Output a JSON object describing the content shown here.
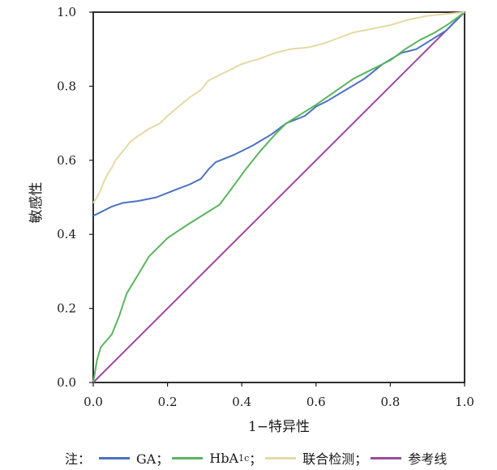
{
  "chart_data": {
    "type": "line",
    "xlabel": "1−特异性",
    "ylabel": "敏感性",
    "xlim": [
      0,
      1
    ],
    "ylim": [
      0,
      1
    ],
    "xticks": [
      "0.0",
      "0.2",
      "0.4",
      "0.6",
      "0.8",
      "1.0"
    ],
    "yticks": [
      "0.0",
      "0.2",
      "0.4",
      "0.6",
      "0.8",
      "1.0"
    ],
    "grid": false,
    "legend_position": "bottom",
    "series": [
      {
        "name": "GA",
        "color": "#4a72c0",
        "x": [
          0,
          0.02,
          0.05,
          0.08,
          0.12,
          0.17,
          0.22,
          0.26,
          0.29,
          0.31,
          0.33,
          0.38,
          0.43,
          0.48,
          0.52,
          0.57,
          0.6,
          0.63,
          0.68,
          0.73,
          0.78,
          0.83,
          0.87,
          0.91,
          0.95,
          0.98,
          1.0
        ],
        "y": [
          0.45,
          0.46,
          0.475,
          0.485,
          0.49,
          0.5,
          0.52,
          0.535,
          0.55,
          0.575,
          0.595,
          0.615,
          0.64,
          0.67,
          0.7,
          0.72,
          0.745,
          0.76,
          0.79,
          0.82,
          0.86,
          0.89,
          0.9,
          0.925,
          0.95,
          0.98,
          1.0
        ]
      },
      {
        "name": "HbA1c",
        "color": "#5ab55e",
        "x": [
          0,
          0.01,
          0.02,
          0.05,
          0.07,
          0.09,
          0.12,
          0.15,
          0.18,
          0.2,
          0.23,
          0.26,
          0.3,
          0.34,
          0.37,
          0.41,
          0.45,
          0.49,
          0.52,
          0.56,
          0.6,
          0.65,
          0.7,
          0.75,
          0.8,
          0.84,
          0.88,
          0.92,
          0.96,
          1.0
        ],
        "y": [
          0,
          0.06,
          0.095,
          0.13,
          0.18,
          0.24,
          0.29,
          0.34,
          0.37,
          0.39,
          0.41,
          0.43,
          0.455,
          0.48,
          0.52,
          0.575,
          0.625,
          0.67,
          0.7,
          0.725,
          0.75,
          0.785,
          0.82,
          0.845,
          0.87,
          0.9,
          0.925,
          0.945,
          0.97,
          1.0
        ]
      },
      {
        "name": "联合检测",
        "color": "#e6d9a3",
        "x": [
          0,
          0.01,
          0.02,
          0.03,
          0.04,
          0.05,
          0.06,
          0.08,
          0.1,
          0.12,
          0.15,
          0.18,
          0.2,
          0.23,
          0.26,
          0.29,
          0.31,
          0.33,
          0.36,
          0.4,
          0.45,
          0.49,
          0.53,
          0.58,
          0.62,
          0.66,
          0.7,
          0.75,
          0.8,
          0.85,
          0.9,
          0.95,
          1.0
        ],
        "y": [
          0.485,
          0.5,
          0.52,
          0.545,
          0.565,
          0.58,
          0.6,
          0.625,
          0.65,
          0.665,
          0.685,
          0.7,
          0.72,
          0.745,
          0.77,
          0.79,
          0.815,
          0.825,
          0.84,
          0.86,
          0.875,
          0.89,
          0.9,
          0.905,
          0.915,
          0.93,
          0.945,
          0.955,
          0.965,
          0.98,
          0.99,
          0.995,
          1.0
        ]
      },
      {
        "name": "参考线",
        "color": "#9b4a9e",
        "x": [
          0,
          1
        ],
        "y": [
          0,
          1
        ]
      }
    ]
  },
  "legend": {
    "lead": "注：",
    "items": [
      {
        "label": "GA；",
        "color": "#4a72c0"
      },
      {
        "label": "HbA",
        "sub": "1c",
        "suffix": "；",
        "color": "#5ab55e"
      },
      {
        "label": "联合检测；",
        "color": "#e6d9a3"
      },
      {
        "label": "参考线",
        "color": "#9b4a9e"
      }
    ]
  }
}
